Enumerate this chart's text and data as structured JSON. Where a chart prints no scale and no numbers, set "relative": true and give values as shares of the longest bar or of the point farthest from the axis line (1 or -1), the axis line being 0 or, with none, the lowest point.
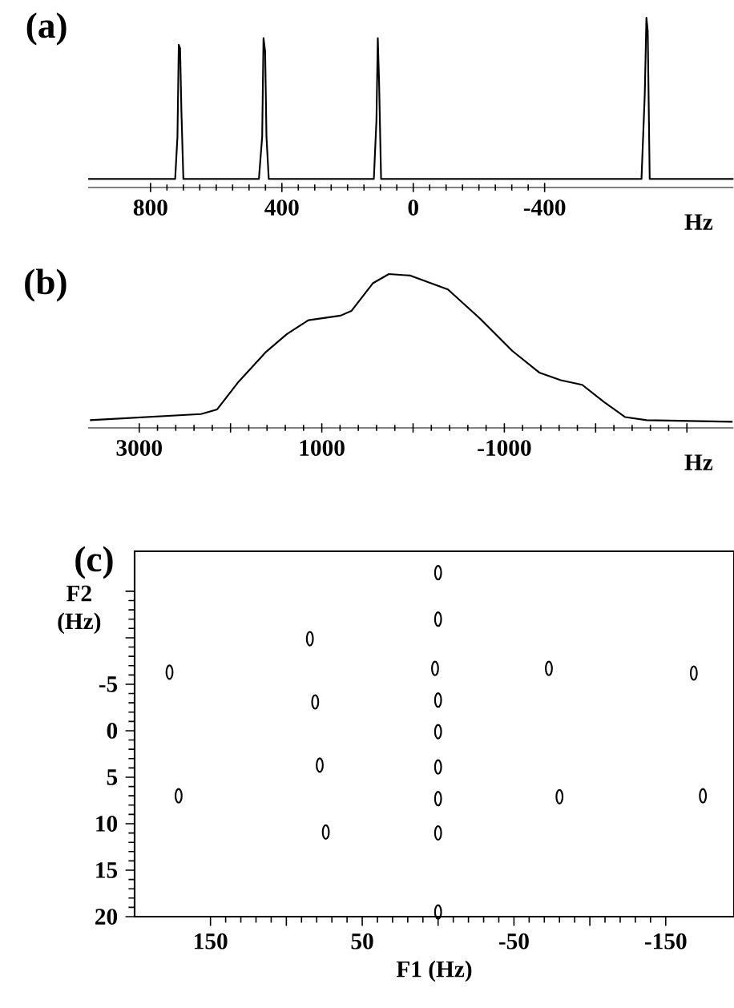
{
  "chart_data": [
    {
      "type": "line",
      "title": "(a)",
      "xlabel": "Hz",
      "relative": true,
      "color": "#000000",
      "x": [
        990,
        750,
        725,
        718,
        714,
        710,
        706,
        700,
        470,
        460,
        456,
        451,
        447,
        440,
        120,
        112,
        108,
        104,
        98,
        -695,
        -705,
        -710,
        -714,
        -720,
        -975
      ],
      "values": [
        0.05,
        0.05,
        0.05,
        0.3,
        0.84,
        0.82,
        0.45,
        0.05,
        0.05,
        0.3,
        0.88,
        0.8,
        0.3,
        0.05,
        0.05,
        0.4,
        0.88,
        0.62,
        0.05,
        0.05,
        0.55,
        1.0,
        0.92,
        0.05,
        0.05
      ],
      "xlim": [
        990,
        -975
      ],
      "xticks": [
        800,
        400,
        0,
        -400
      ]
    },
    {
      "type": "line",
      "title": "(b)",
      "xlabel": "Hz",
      "relative": true,
      "color": "#000000",
      "x": [
        3540,
        2324,
        2147,
        1912,
        1618,
        1382,
        1147,
        794,
        676,
        441,
        265,
        29,
        -382,
        -735,
        -1088,
        -1382,
        -1618,
        -1853,
        -2088,
        -2324,
        -2559,
        -3500
      ],
      "values": [
        0.05,
        0.09,
        0.12,
        0.3,
        0.49,
        0.61,
        0.7,
        0.73,
        0.76,
        0.94,
        1.0,
        0.99,
        0.9,
        0.71,
        0.5,
        0.36,
        0.31,
        0.28,
        0.17,
        0.07,
        0.05,
        0.04
      ],
      "xlim": [
        3560,
        -3510
      ],
      "xticks": [
        3000,
        {
          "value": 2000,
          "label": null
        },
        1000,
        {
          "value": 0,
          "label": null
        },
        -1000,
        {
          "value": -2000,
          "label": null
        },
        {
          "value": -3000,
          "label": null
        }
      ]
    },
    {
      "type": "scatter",
      "title": "(c)",
      "xlabel": "F1 (Hz)",
      "ylabel": "F2 (Hz)",
      "color": "#000000",
      "marker": "circle",
      "x": [
        177,
        171,
        84.5,
        81,
        78,
        74,
        2,
        0,
        0,
        0,
        0,
        0,
        0,
        0,
        0,
        -73,
        -80,
        -168.5,
        -174.5
      ],
      "values": [
        -6.3,
        7.0,
        -9.9,
        -3.1,
        3.7,
        10.9,
        -6.7,
        -3.3,
        0.1,
        3.9,
        7.3,
        -17,
        -12,
        11,
        19.5,
        -6.7,
        7.1,
        -6.2,
        7.0
      ],
      "xlim": [
        200,
        -195
      ],
      "ylim": [
        20,
        -19.3
      ],
      "xticks": [
        150,
        {
          "value": 100,
          "label": null
        },
        50,
        {
          "value": 0,
          "label": null
        },
        -50,
        {
          "value": -100,
          "label": null
        },
        -150
      ],
      "yticks": [
        20,
        15,
        10,
        5,
        0,
        -5,
        {
          "value": -10,
          "label": null
        },
        {
          "value": -15,
          "label": null
        }
      ]
    }
  ]
}
